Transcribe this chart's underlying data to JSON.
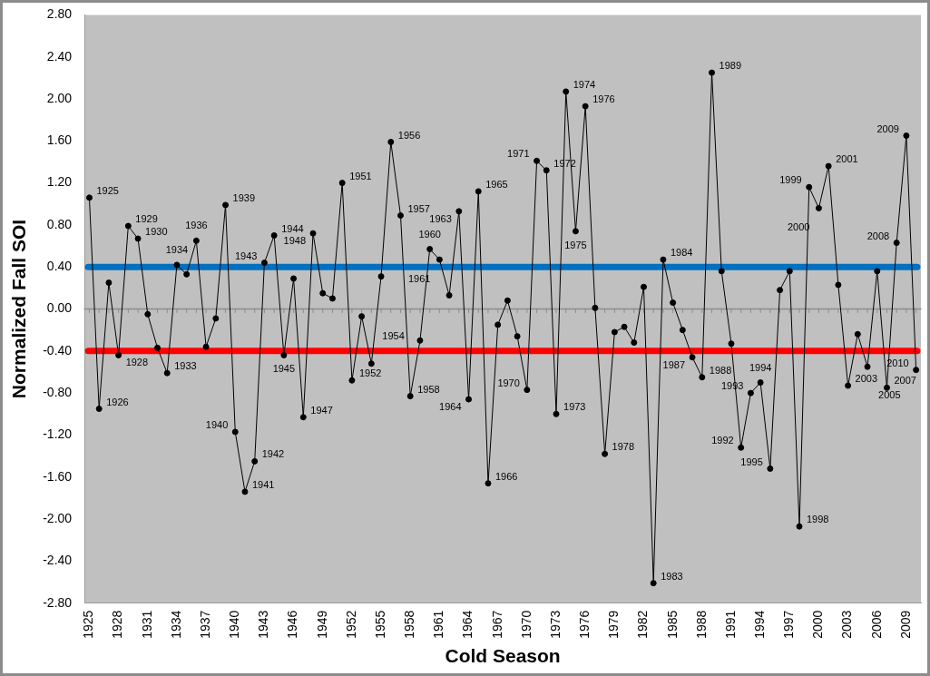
{
  "chart_data": {
    "type": "line",
    "xlabel": "Cold Season",
    "ylabel": "Normalized Fall SOI",
    "x": [
      1925,
      1926,
      1927,
      1928,
      1929,
      1930,
      1931,
      1932,
      1933,
      1934,
      1935,
      1936,
      1937,
      1938,
      1939,
      1940,
      1941,
      1942,
      1943,
      1944,
      1945,
      1946,
      1947,
      1948,
      1949,
      1950,
      1951,
      1952,
      1953,
      1954,
      1955,
      1956,
      1957,
      1958,
      1959,
      1960,
      1961,
      1962,
      1963,
      1964,
      1965,
      1966,
      1967,
      1968,
      1969,
      1970,
      1971,
      1972,
      1973,
      1974,
      1975,
      1976,
      1977,
      1978,
      1979,
      1980,
      1981,
      1982,
      1983,
      1984,
      1985,
      1986,
      1987,
      1988,
      1989,
      1990,
      1991,
      1992,
      1993,
      1994,
      1995,
      1996,
      1997,
      1998,
      1999,
      2000,
      2001,
      2002,
      2003,
      2004,
      2005,
      2006,
      2007,
      2008,
      2009,
      2010
    ],
    "series": [
      {
        "color": "#000000",
        "values": [
          1.06,
          -0.95,
          0.25,
          -0.44,
          0.79,
          0.67,
          -0.05,
          -0.37,
          -0.61,
          0.42,
          0.33,
          0.65,
          -0.36,
          -0.09,
          0.99,
          -1.17,
          -1.74,
          -1.45,
          0.44,
          0.7,
          -0.44,
          0.29,
          -1.03,
          0.72,
          0.15,
          0.1,
          1.2,
          -0.68,
          -0.07,
          -0.52,
          0.31,
          1.59,
          0.89,
          -0.83,
          -0.3,
          0.57,
          0.47,
          0.13,
          0.93,
          -0.86,
          1.12,
          -1.66,
          -0.15,
          0.08,
          -0.26,
          -0.77,
          1.41,
          1.32,
          -1.0,
          2.07,
          0.74,
          1.93,
          0.01,
          -1.38,
          -0.22,
          -0.17,
          -0.32,
          0.21,
          -2.61,
          0.47,
          0.06,
          -0.2,
          -0.46,
          -0.65,
          2.25,
          0.36,
          -0.33,
          -1.32,
          -0.8,
          -0.7,
          -1.52,
          0.18,
          0.36,
          -2.07,
          1.16,
          0.96,
          1.36,
          0.23,
          -0.73,
          -0.24,
          -0.55,
          0.36,
          -0.75,
          0.63,
          1.65,
          -0.58
        ]
      }
    ],
    "marker": "circle",
    "line_style": "solid",
    "grid": false,
    "legend": false,
    "xlim": [
      1924.5,
      2010.5
    ],
    "xticks": [
      1925,
      1928,
      1931,
      1934,
      1937,
      1940,
      1943,
      1946,
      1949,
      1952,
      1955,
      1958,
      1961,
      1964,
      1967,
      1970,
      1973,
      1976,
      1979,
      1982,
      1985,
      1988,
      1991,
      1994,
      1997,
      2000,
      2003,
      2006,
      2009
    ],
    "ylim": [
      -2.8,
      2.8
    ],
    "yticks": [
      {
        "value": -2.8,
        "label": "-2.80"
      },
      {
        "value": -2.4,
        "label": "-2.40"
      },
      {
        "value": -2.0,
        "label": "-2.00"
      },
      {
        "value": -1.6,
        "label": "-1.60"
      },
      {
        "value": -1.2,
        "label": "-1.20"
      },
      {
        "value": -0.8,
        "label": "-0.80"
      },
      {
        "value": -0.4,
        "label": "-0.40"
      },
      {
        "value": 0,
        "label": "0.00"
      },
      {
        "value": 0.4,
        "label": "0.40"
      },
      {
        "value": 0.8,
        "label": "0.80"
      },
      {
        "value": 1.2,
        "label": "1.20"
      },
      {
        "value": 1.6,
        "label": "1.60"
      },
      {
        "value": 2.0,
        "label": "2.00"
      },
      {
        "value": 2.4,
        "label": "2.40"
      },
      {
        "value": 2.8,
        "label": "2.80"
      }
    ],
    "ref_lines": [
      {
        "axis": "y",
        "value": 0,
        "color": "#8c8c8c"
      },
      {
        "axis": "y",
        "value": 0.4,
        "color": "#0070c0"
      },
      {
        "axis": "y",
        "value": -0.4,
        "color": "#ff0000"
      }
    ],
    "annotations": [
      {
        "text": "1925",
        "x": 1925,
        "y": 1.06
      },
      {
        "text": "1926",
        "x": 1926,
        "y": -0.95
      },
      {
        "text": "1928",
        "x": 1928,
        "y": -0.44
      },
      {
        "text": "1929",
        "x": 1929,
        "y": 0.79
      },
      {
        "text": "1930",
        "x": 1930,
        "y": 0.67
      },
      {
        "text": "1933",
        "x": 1933,
        "y": -0.61
      },
      {
        "text": "1934",
        "x": 1934,
        "y": 0.42
      },
      {
        "text": "1936",
        "x": 1936,
        "y": 0.65
      },
      {
        "text": "1939",
        "x": 1939,
        "y": 0.99
      },
      {
        "text": "1940",
        "x": 1940,
        "y": -1.17
      },
      {
        "text": "1941",
        "x": 1941,
        "y": -1.74
      },
      {
        "text": "1942",
        "x": 1942,
        "y": -1.45
      },
      {
        "text": "1943",
        "x": 1943,
        "y": 0.44
      },
      {
        "text": "1944",
        "x": 1944,
        "y": 0.7
      },
      {
        "text": "1945",
        "x": 1945,
        "y": -0.44
      },
      {
        "text": "1947",
        "x": 1947,
        "y": -1.03
      },
      {
        "text": "1948",
        "x": 1948,
        "y": 0.72
      },
      {
        "text": "1951",
        "x": 1951,
        "y": 1.2
      },
      {
        "text": "1952",
        "x": 1952,
        "y": -0.68
      },
      {
        "text": "1954",
        "x": 1954,
        "y": -0.52
      },
      {
        "text": "1956",
        "x": 1956,
        "y": 1.59
      },
      {
        "text": "1957",
        "x": 1957,
        "y": 0.89
      },
      {
        "text": "1958",
        "x": 1958,
        "y": -0.83
      },
      {
        "text": "1960",
        "x": 1960,
        "y": 0.57
      },
      {
        "text": "1961",
        "x": 1961,
        "y": 0.47
      },
      {
        "text": "1963",
        "x": 1963,
        "y": 0.93
      },
      {
        "text": "1964",
        "x": 1964,
        "y": -0.86
      },
      {
        "text": "1965",
        "x": 1965,
        "y": 1.12
      },
      {
        "text": "1966",
        "x": 1966,
        "y": -1.66
      },
      {
        "text": "1970",
        "x": 1970,
        "y": -0.77
      },
      {
        "text": "1971",
        "x": 1971,
        "y": 1.41
      },
      {
        "text": "1972",
        "x": 1972,
        "y": 1.32
      },
      {
        "text": "1973",
        "x": 1973,
        "y": -1.0
      },
      {
        "text": "1974",
        "x": 1974,
        "y": 2.07
      },
      {
        "text": "1975",
        "x": 1975,
        "y": 0.74
      },
      {
        "text": "1976",
        "x": 1976,
        "y": 1.93
      },
      {
        "text": "1978",
        "x": 1978,
        "y": -1.38
      },
      {
        "text": "1983",
        "x": 1983,
        "y": -2.61
      },
      {
        "text": "1984",
        "x": 1984,
        "y": 0.47
      },
      {
        "text": "1987",
        "x": 1987,
        "y": -0.46
      },
      {
        "text": "1988",
        "x": 1988,
        "y": -0.65
      },
      {
        "text": "1989",
        "x": 1989,
        "y": 2.25
      },
      {
        "text": "1992",
        "x": 1992,
        "y": -1.32
      },
      {
        "text": "1993",
        "x": 1993,
        "y": -0.8
      },
      {
        "text": "1994",
        "x": 1994,
        "y": -0.7
      },
      {
        "text": "1995",
        "x": 1995,
        "y": -1.52
      },
      {
        "text": "1998",
        "x": 1998,
        "y": -2.07
      },
      {
        "text": "1999",
        "x": 1999,
        "y": 1.16
      },
      {
        "text": "2000",
        "x": 2000,
        "y": 0.96
      },
      {
        "text": "2001",
        "x": 2001,
        "y": 1.36
      },
      {
        "text": "2003",
        "x": 2003,
        "y": -0.73
      },
      {
        "text": "2005",
        "x": 2005,
        "y": -0.55
      },
      {
        "text": "2007",
        "x": 2007,
        "y": -0.75
      },
      {
        "text": "2008",
        "x": 2008,
        "y": 0.63
      },
      {
        "text": "2009",
        "x": 2009,
        "y": 1.65
      },
      {
        "text": "2010",
        "x": 2010,
        "y": -0.58
      }
    ]
  }
}
